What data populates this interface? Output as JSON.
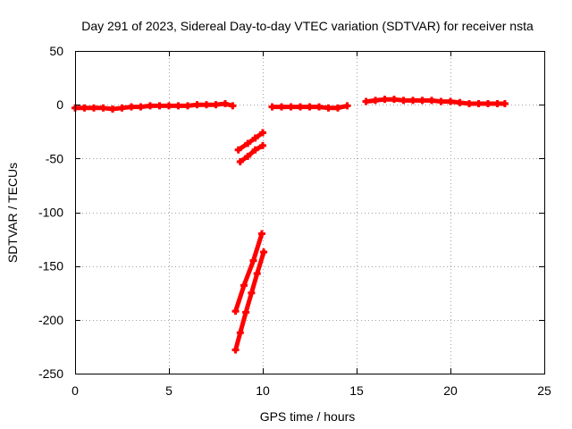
{
  "chart_data": {
    "type": "scatter",
    "title": "Day 291 of 2023, Sidereal Day-to-day VTEC variation (SDTVAR) for receiver nsta",
    "xlabel": "GPS time / hours",
    "ylabel": "SDTVAR / TECUs",
    "xlim": [
      0,
      25
    ],
    "ylim": [
      -250,
      50
    ],
    "xticks": [
      0,
      5,
      10,
      15,
      20,
      25
    ],
    "yticks": [
      -250,
      -200,
      -150,
      -100,
      -50,
      0,
      50
    ],
    "grid": true,
    "marker_color": "#ff0000",
    "series": [
      {
        "segments": [
          [
            [
              0.0,
              -3
            ],
            [
              0.5,
              -3
            ],
            [
              1.0,
              -3
            ],
            [
              1.5,
              -3
            ],
            [
              2.0,
              -4
            ],
            [
              2.5,
              -3
            ],
            [
              3.0,
              -2
            ],
            [
              3.5,
              -2
            ],
            [
              4.0,
              -1
            ],
            [
              4.5,
              -1
            ],
            [
              5.0,
              -1
            ],
            [
              5.5,
              -1
            ],
            [
              6.0,
              -1
            ],
            [
              6.5,
              0
            ],
            [
              7.0,
              0
            ],
            [
              7.5,
              0
            ],
            [
              8.0,
              1
            ],
            [
              8.4,
              -1
            ]
          ],
          [
            [
              8.7,
              -42
            ],
            [
              9.2,
              -36
            ],
            [
              9.6,
              -31
            ],
            [
              10.0,
              -26
            ]
          ],
          [
            [
              8.8,
              -53
            ],
            [
              9.2,
              -48
            ],
            [
              9.6,
              -42
            ],
            [
              10.0,
              -38
            ]
          ],
          [
            [
              8.55,
              -192
            ],
            [
              9.0,
              -168
            ],
            [
              9.5,
              -145
            ],
            [
              9.95,
              -120
            ]
          ],
          [
            [
              8.55,
              -228
            ],
            [
              8.8,
              -212
            ],
            [
              9.1,
              -193
            ],
            [
              9.4,
              -175
            ],
            [
              9.7,
              -157
            ],
            [
              10.05,
              -137
            ]
          ],
          [
            [
              10.5,
              -2
            ],
            [
              11.0,
              -2
            ],
            [
              11.5,
              -2
            ],
            [
              12.0,
              -2
            ],
            [
              12.5,
              -2
            ],
            [
              13.0,
              -2
            ],
            [
              13.5,
              -3
            ],
            [
              14.0,
              -3
            ],
            [
              14.5,
              -1
            ]
          ],
          [
            [
              15.5,
              3
            ],
            [
              16.0,
              4
            ],
            [
              16.5,
              5
            ],
            [
              17.0,
              5
            ],
            [
              17.5,
              4
            ],
            [
              18.0,
              4
            ],
            [
              18.5,
              4
            ],
            [
              19.0,
              4
            ],
            [
              19.5,
              3
            ],
            [
              20.0,
              3
            ],
            [
              20.5,
              2
            ],
            [
              21.0,
              1
            ],
            [
              21.5,
              1
            ],
            [
              22.0,
              1
            ],
            [
              22.5,
              1
            ],
            [
              22.9,
              1
            ]
          ]
        ]
      }
    ]
  }
}
